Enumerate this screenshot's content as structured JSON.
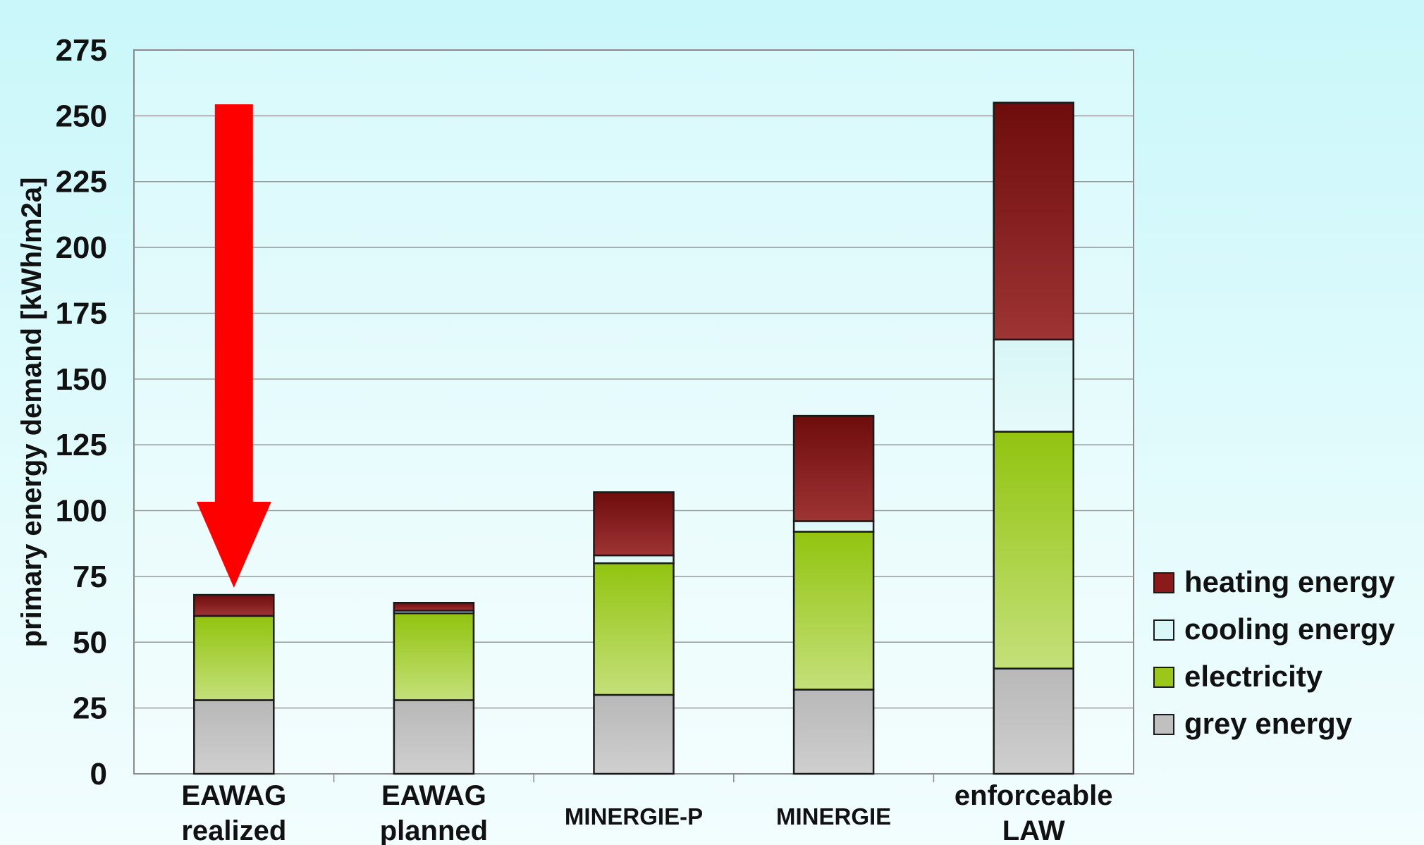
{
  "chart_data": {
    "type": "bar",
    "stacked": true,
    "title": "",
    "xlabel": "",
    "ylabel": "primary energy demand [kWh/m2a]",
    "ylim": [
      0,
      275
    ],
    "yticks": [
      "0",
      "25",
      "50",
      "75",
      "100",
      "125",
      "150",
      "175",
      "200",
      "225",
      "250",
      "275"
    ],
    "grid": true,
    "legend_position": "bottom-right",
    "categories": [
      [
        "EAWAG",
        "realized"
      ],
      [
        "EAWAG",
        "planned"
      ],
      [
        "MINERGIE-P"
      ],
      [
        "MINERGIE"
      ],
      [
        "enforceable",
        "LAW"
      ]
    ],
    "series": [
      {
        "name": "grey energy",
        "color": "#c0c0c0",
        "values": [
          28,
          28,
          30,
          32,
          40
        ]
      },
      {
        "name": "electricity",
        "color": "#9bc71a",
        "values": [
          32,
          33,
          50,
          60,
          90
        ]
      },
      {
        "name": "cooling energy",
        "color": "#d9f7f7",
        "values": [
          0,
          1,
          3,
          4,
          35
        ]
      },
      {
        "name": "heating energy",
        "color": "#8b1a1a",
        "values": [
          8,
          3,
          24,
          40,
          90
        ]
      }
    ],
    "annotation": {
      "type": "arrow",
      "color": "#ff0000",
      "points_to_category": 0
    }
  }
}
